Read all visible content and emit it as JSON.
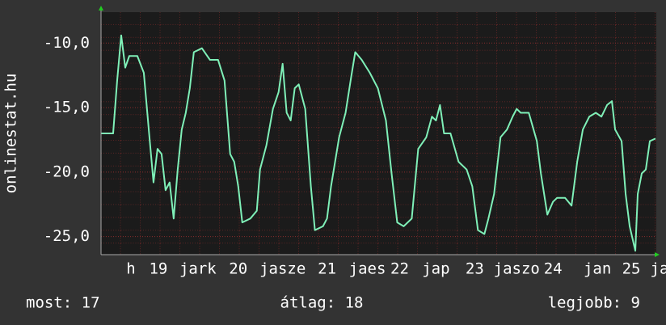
{
  "chart_data": {
    "type": "line",
    "ylabel": "onlinestat.hu",
    "xlim": [
      0,
      172
    ],
    "ylim": [
      -26.4,
      -7.6
    ],
    "yticks": [
      {
        "value": -10,
        "label": "-10,0"
      },
      {
        "value": -15,
        "label": "-15,0"
      },
      {
        "value": -20,
        "label": "-20,0"
      },
      {
        "value": -25,
        "label": "-25,0"
      }
    ],
    "xticks": [
      {
        "value": 9.25,
        "label": "h"
      },
      {
        "value": 17.75,
        "label": "19"
      },
      {
        "value": 30,
        "label": "jark"
      },
      {
        "value": 42.5,
        "label": "20"
      },
      {
        "value": 56.25,
        "label": "jasze"
      },
      {
        "value": 70,
        "label": "21"
      },
      {
        "value": 82.5,
        "label": "jaes"
      },
      {
        "value": 92.5,
        "label": "22"
      },
      {
        "value": 103.75,
        "label": "jap"
      },
      {
        "value": 115.75,
        "label": "23"
      },
      {
        "value": 128.75,
        "label": "jaszo"
      },
      {
        "value": 140,
        "label": "24"
      },
      {
        "value": 153.75,
        "label": "jan"
      },
      {
        "value": 164.25,
        "label": "25"
      },
      {
        "value": 173,
        "label": "ja"
      }
    ],
    "grid": true,
    "series": [
      {
        "color": "#7ff0b8",
        "x": [
          0,
          3.75,
          5,
          6.25,
          7.5,
          8.75,
          11.25,
          13.25,
          15,
          16.25,
          17.5,
          18.75,
          20,
          21.25,
          22.5,
          23.75,
          25,
          26.25,
          27.5,
          28.75,
          31.25,
          33.75,
          36.25,
          38.25,
          40,
          41.25,
          42.5,
          43.75,
          46.25,
          48.25,
          49.25,
          51.25,
          53.25,
          55,
          56.25,
          57.5,
          58.75,
          60,
          61.25,
          63.25,
          65,
          66.25,
          68.75,
          70,
          71.25,
          73.75,
          75.75,
          77.5,
          78.75,
          80.75,
          83.25,
          85.75,
          88.25,
          90,
          91.75,
          93.75,
          96.25,
          98.25,
          100.75,
          102.5,
          103.75,
          105,
          106.25,
          108.25,
          110.75,
          113.25,
          115,
          116.75,
          118.75,
          120,
          121.75,
          123.75,
          125.75,
          127.5,
          128.75,
          130,
          132.5,
          135,
          136.25,
          138.25,
          140,
          141.25,
          143.75,
          145.75,
          147.5,
          149.25,
          151.25,
          153.25,
          155,
          156.75,
          158.25,
          159.25,
          161.25,
          162.5,
          163.75,
          165.5,
          166.25,
          167.5,
          168.75,
          170,
          171.75
        ],
        "values": [
          -17.0,
          -17.0,
          -12.9,
          -9.4,
          -11.9,
          -11.0,
          -11.0,
          -12.3,
          -17.3,
          -20.8,
          -18.2,
          -18.6,
          -21.4,
          -20.8,
          -23.6,
          -19.8,
          -16.7,
          -15.4,
          -13.5,
          -10.7,
          -10.4,
          -11.3,
          -11.3,
          -12.9,
          -18.6,
          -19.2,
          -21.1,
          -23.9,
          -23.6,
          -23.0,
          -19.8,
          -17.9,
          -15.1,
          -13.8,
          -11.6,
          -15.4,
          -16.0,
          -13.5,
          -13.2,
          -15.1,
          -21.1,
          -24.5,
          -24.2,
          -23.6,
          -21.1,
          -17.3,
          -15.4,
          -12.6,
          -10.7,
          -11.3,
          -12.3,
          -13.5,
          -16.0,
          -20.1,
          -23.9,
          -24.2,
          -23.6,
          -18.2,
          -17.3,
          -15.7,
          -16.0,
          -14.8,
          -17.0,
          -17.0,
          -19.2,
          -19.8,
          -21.1,
          -24.5,
          -24.8,
          -23.6,
          -21.7,
          -17.3,
          -16.7,
          -15.7,
          -15.1,
          -15.4,
          -15.4,
          -17.6,
          -20.1,
          -23.3,
          -22.3,
          -22.0,
          -22.0,
          -22.6,
          -19.2,
          -16.7,
          -15.7,
          -15.4,
          -15.7,
          -14.8,
          -14.5,
          -16.7,
          -17.6,
          -21.7,
          -24.2,
          -26.1,
          -21.7,
          -20.1,
          -19.8,
          -17.6,
          -17.4
        ]
      }
    ],
    "stats": [
      "most: 17",
      "átlag: 18",
      "legjobb: 9"
    ]
  }
}
